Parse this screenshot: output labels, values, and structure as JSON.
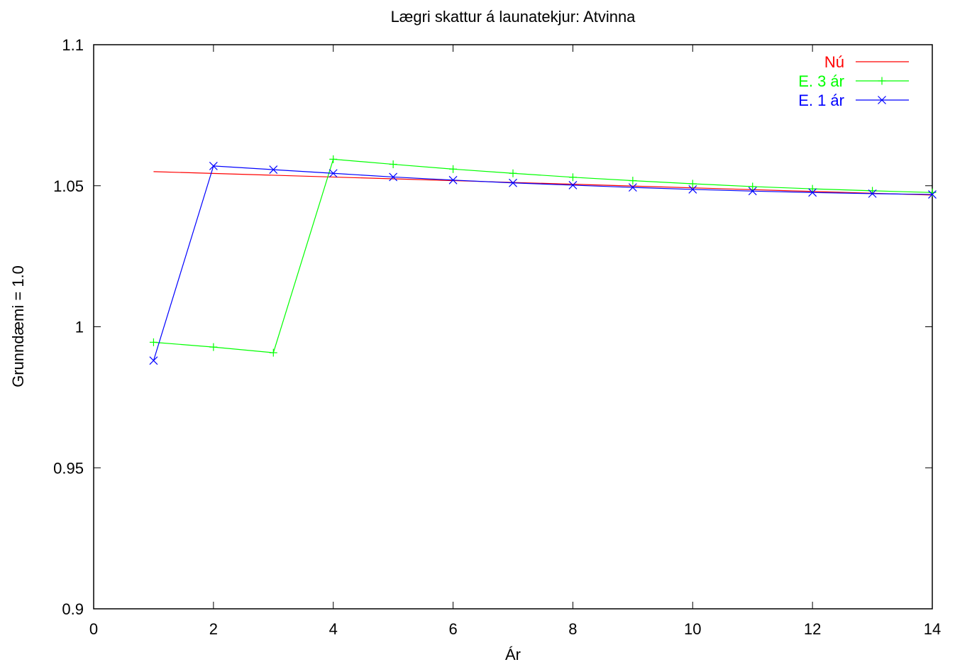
{
  "chart_data": {
    "type": "line",
    "title": "Lægri skattur á launatekjur: Atvinna",
    "xlabel": "Ár",
    "ylabel": "Grunndæmi = 1.0",
    "xlim": [
      0,
      14
    ],
    "ylim": [
      0.9,
      1.1
    ],
    "xticks": [
      "0",
      "2",
      "4",
      "6",
      "8",
      "10",
      "12",
      "14"
    ],
    "yticks": [
      "0.9",
      "0.95",
      "1",
      "1.05",
      "1.1"
    ],
    "grid": false,
    "legend_position": "top-right",
    "series": [
      {
        "name": "Nú",
        "color": "#ff0000",
        "marker": "none",
        "x": [
          1,
          14
        ],
        "values": [
          1.055,
          1.0467
        ]
      },
      {
        "name": "E. 3 ár",
        "color": "#00ff00",
        "marker": "plus",
        "x": [
          1,
          2,
          3,
          4,
          5,
          6,
          7,
          8,
          9,
          10,
          11,
          12,
          13,
          14
        ],
        "values": [
          0.9945,
          0.9928,
          0.9908,
          1.0594,
          1.0576,
          1.0559,
          1.0544,
          1.053,
          1.0518,
          1.0507,
          1.0497,
          1.0489,
          1.0482,
          1.0476
        ]
      },
      {
        "name": "E. 1 ár",
        "color": "#0000ff",
        "marker": "cross",
        "x": [
          1,
          2,
          3,
          4,
          5,
          6,
          7,
          8,
          9,
          10,
          11,
          12,
          13,
          14
        ],
        "values": [
          0.988,
          1.057,
          1.0557,
          1.0544,
          1.0531,
          1.052,
          1.051,
          1.0502,
          1.0494,
          1.0487,
          1.0481,
          1.0476,
          1.0472,
          1.0469
        ]
      }
    ]
  }
}
